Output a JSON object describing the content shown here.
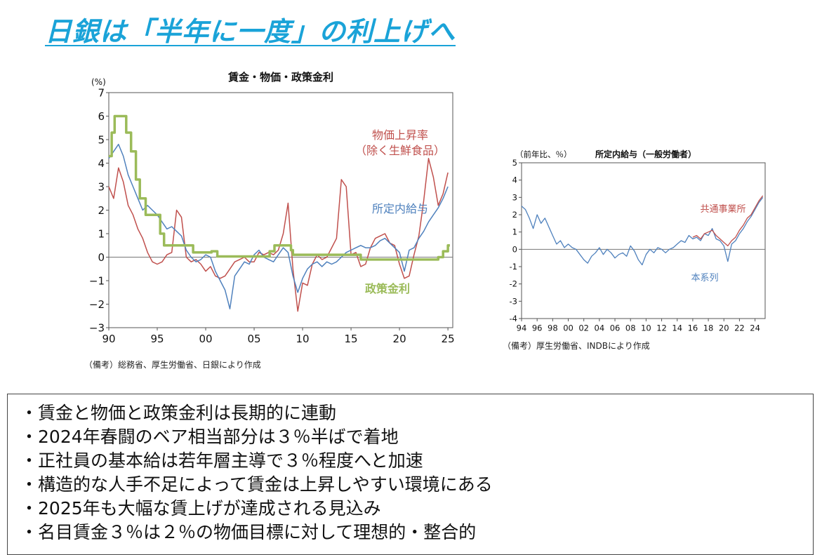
{
  "slide": {
    "title": "日銀は「半年に一度」の利上げへ"
  },
  "notes": {
    "left": "（備考）総務省、厚生労働省、日銀により作成",
    "right": "（備考）厚生労働省、INDBにより作成"
  },
  "bullets": [
    "賃金と物価と政策金利は長期的に連動",
    "2024年春闘のベア相当部分は３％半ばで着地",
    "正社員の基本給は若年層主導で３％程度へと加速",
    "構造的な人手不足によって賃金は上昇しやすい環境にある",
    "2025年も大幅な賃上げが達成される見込み",
    "名目賃金３％は２％の物価目標に対して理想的・整合的"
  ],
  "colors": {
    "title": "#1aa3d8",
    "cpi": "#c0504d",
    "wage": "#4f81bd",
    "policy": "#9bbb59"
  },
  "chart_data": [
    {
      "type": "line",
      "title": "賃金・物価・政策金利",
      "unit_label": "(%)",
      "xlim": [
        1990,
        2025.5
      ],
      "ylim": [
        -3,
        7
      ],
      "yticks": [
        "7",
        "6",
        "5",
        "4",
        "3",
        "2",
        "1",
        "0",
        "−1",
        "−2",
        "−3"
      ],
      "xtick_labels": [
        "90",
        "95",
        "00",
        "05",
        "10",
        "15",
        "20",
        "25"
      ],
      "xtick_values": [
        1990,
        1995,
        2000,
        2005,
        2010,
        2015,
        2020,
        2025
      ],
      "series": [
        {
          "name": "物価上昇率\n（除く生鮮食品）",
          "label_lines": [
            "物価上昇率",
            "（除く生鮮食品）"
          ],
          "color": "#c0504d",
          "x": [
            1990.0,
            1990.5,
            1991.0,
            1991.5,
            1992.0,
            1992.5,
            1993.0,
            1993.5,
            1994.0,
            1994.5,
            1995.0,
            1995.5,
            1996.0,
            1996.5,
            1997.0,
            1997.5,
            1998.0,
            1998.5,
            1999.0,
            1999.5,
            2000.0,
            2000.5,
            2001.0,
            2001.5,
            2002.0,
            2002.5,
            2003.0,
            2003.5,
            2004.0,
            2004.5,
            2005.0,
            2005.5,
            2006.0,
            2006.5,
            2007.0,
            2007.5,
            2008.0,
            2008.5,
            2009.0,
            2009.5,
            2010.0,
            2010.5,
            2011.0,
            2011.5,
            2012.0,
            2012.5,
            2013.0,
            2013.5,
            2014.0,
            2014.5,
            2015.0,
            2015.5,
            2016.0,
            2016.5,
            2017.0,
            2017.5,
            2018.0,
            2018.5,
            2019.0,
            2019.5,
            2020.0,
            2020.5,
            2021.0,
            2021.5,
            2022.0,
            2022.5,
            2023.0,
            2023.5,
            2024.0,
            2024.5,
            2025.0
          ],
          "y": [
            3.0,
            2.5,
            3.8,
            3.2,
            2.2,
            1.8,
            1.2,
            0.8,
            0.2,
            -0.2,
            -0.3,
            -0.2,
            0.1,
            0.2,
            2.0,
            1.7,
            0.0,
            -0.2,
            -0.1,
            -0.3,
            -0.6,
            -0.4,
            -0.8,
            -0.9,
            -0.8,
            -0.5,
            -0.2,
            -0.1,
            0.0,
            -0.2,
            -0.2,
            0.2,
            0.1,
            0.2,
            0.1,
            0.3,
            1.0,
            2.3,
            -0.5,
            -2.3,
            -1.1,
            -1.2,
            -0.3,
            0.1,
            -0.1,
            0.0,
            0.4,
            0.8,
            3.3,
            3.0,
            0.1,
            0.2,
            -0.4,
            -0.3,
            0.4,
            0.8,
            0.9,
            1.0,
            0.6,
            0.5,
            -0.3,
            -0.9,
            -0.8,
            0.1,
            0.9,
            2.4,
            4.2,
            3.4,
            2.2,
            2.7,
            3.6
          ]
        },
        {
          "name": "所定内給与",
          "color": "#4f81bd",
          "x": [
            1990.0,
            1990.5,
            1991.0,
            1991.5,
            1992.0,
            1992.5,
            1993.0,
            1993.5,
            1994.0,
            1994.5,
            1995.0,
            1995.5,
            1996.0,
            1996.5,
            1997.0,
            1997.5,
            1998.0,
            1998.5,
            1999.0,
            1999.5,
            2000.0,
            2000.5,
            2001.0,
            2001.5,
            2002.0,
            2002.5,
            2003.0,
            2003.5,
            2004.0,
            2004.5,
            2005.0,
            2005.5,
            2006.0,
            2006.5,
            2007.0,
            2007.5,
            2008.0,
            2008.5,
            2009.0,
            2009.5,
            2010.0,
            2010.5,
            2011.0,
            2011.5,
            2012.0,
            2012.5,
            2013.0,
            2013.5,
            2014.0,
            2014.5,
            2015.0,
            2015.5,
            2016.0,
            2016.5,
            2017.0,
            2017.5,
            2018.0,
            2018.5,
            2019.0,
            2019.5,
            2020.0,
            2020.5,
            2021.0,
            2021.5,
            2022.0,
            2022.5,
            2023.0,
            2023.5,
            2024.0,
            2024.5,
            2025.0
          ],
          "y": [
            4.2,
            4.5,
            4.8,
            4.3,
            3.5,
            3.0,
            2.5,
            2.0,
            2.2,
            2.0,
            1.8,
            1.5,
            1.2,
            1.3,
            1.1,
            0.9,
            0.3,
            0.0,
            -0.2,
            -0.1,
            0.1,
            0.0,
            -0.6,
            -1.0,
            -1.4,
            -2.2,
            -0.8,
            -0.5,
            -0.2,
            -0.3,
            0.1,
            0.3,
            0.0,
            -0.1,
            -0.2,
            0.1,
            0.4,
            0.2,
            -0.8,
            -1.5,
            -0.9,
            -0.5,
            -0.3,
            -0.2,
            -0.4,
            -0.2,
            -0.3,
            -0.2,
            0.0,
            0.2,
            0.3,
            0.4,
            0.5,
            0.4,
            0.4,
            0.5,
            0.7,
            0.8,
            0.6,
            0.4,
            0.2,
            -0.6,
            0.3,
            0.4,
            0.8,
            1.1,
            1.5,
            1.8,
            2.1,
            2.5,
            3.0
          ]
        },
        {
          "name": "政策金利",
          "color": "#9bbb59",
          "x": [
            1990.0,
            1990.3,
            1990.6,
            1991.5,
            1991.8,
            1992.3,
            1992.8,
            1993.2,
            1993.8,
            1995.3,
            1995.7,
            1998.7,
            2000.6,
            2001.2,
            2006.6,
            2007.1,
            2008.8,
            2009.0,
            2015.5,
            2016.0,
            2024.0,
            2024.5,
            2025.0,
            2025.2
          ],
          "y": [
            4.3,
            5.3,
            6.0,
            6.0,
            5.3,
            4.5,
            3.3,
            2.5,
            1.8,
            1.0,
            0.5,
            0.2,
            0.25,
            0.03,
            0.25,
            0.5,
            0.3,
            0.1,
            0.1,
            -0.1,
            0.0,
            0.25,
            0.5,
            0.5
          ]
        }
      ]
    },
    {
      "type": "line",
      "title": "所定内給与（一般労働者）",
      "unit_label": "（前年比、％）",
      "xlim": [
        1994,
        2025.3
      ],
      "ylim": [
        -4,
        5
      ],
      "yticks": [
        "5",
        "4",
        "3",
        "2",
        "1",
        "0",
        "-1",
        "-2",
        "-3",
        "-4"
      ],
      "xtick_labels": [
        "94",
        "96",
        "98",
        "00",
        "02",
        "04",
        "06",
        "08",
        "10",
        "12",
        "14",
        "16",
        "18",
        "20",
        "22",
        "24"
      ],
      "xtick_values": [
        1994,
        1996,
        1998,
        2000,
        2002,
        2004,
        2006,
        2008,
        2010,
        2012,
        2014,
        2016,
        2018,
        2020,
        2022,
        2024
      ],
      "series": [
        {
          "name": "本系列",
          "color": "#4f81bd",
          "x": [
            1994.0,
            1994.5,
            1995.0,
            1995.5,
            1996.0,
            1996.5,
            1997.0,
            1997.5,
            1998.0,
            1998.5,
            1999.0,
            1999.5,
            2000.0,
            2000.5,
            2001.0,
            2001.5,
            2002.0,
            2002.5,
            2003.0,
            2003.5,
            2004.0,
            2004.5,
            2005.0,
            2005.5,
            2006.0,
            2006.5,
            2007.0,
            2007.5,
            2008.0,
            2008.5,
            2009.0,
            2009.5,
            2010.0,
            2010.5,
            2011.0,
            2011.5,
            2012.0,
            2012.5,
            2013.0,
            2013.5,
            2014.0,
            2014.5,
            2015.0,
            2015.5,
            2016.0,
            2016.5,
            2017.0,
            2017.5,
            2018.0,
            2018.5,
            2019.0,
            2019.5,
            2020.0,
            2020.5,
            2021.0,
            2021.5,
            2022.0,
            2022.5,
            2023.0,
            2023.5,
            2024.0,
            2024.5,
            2025.0
          ],
          "y": [
            2.5,
            2.3,
            1.8,
            1.2,
            2.0,
            1.5,
            1.8,
            1.3,
            0.8,
            0.3,
            0.5,
            0.1,
            0.3,
            0.1,
            0.0,
            -0.3,
            -0.6,
            -0.8,
            -0.4,
            -0.2,
            0.1,
            -0.3,
            0.0,
            -0.2,
            -0.5,
            -0.3,
            -0.2,
            -0.4,
            0.2,
            -0.1,
            -0.6,
            -0.9,
            -0.3,
            0.0,
            -0.2,
            0.1,
            0.0,
            -0.2,
            0.0,
            0.1,
            0.3,
            0.5,
            0.4,
            0.8,
            0.6,
            0.7,
            0.5,
            0.9,
            0.8,
            1.2,
            0.6,
            0.5,
            0.2,
            -0.7,
            0.3,
            0.5,
            0.9,
            1.2,
            1.6,
            1.9,
            2.3,
            2.7,
            3.0
          ]
        },
        {
          "name": "共通事業所",
          "color": "#c0504d",
          "x": [
            2016.0,
            2016.5,
            2017.0,
            2017.5,
            2018.0,
            2018.5,
            2019.0,
            2019.5,
            2020.0,
            2020.5,
            2021.0,
            2021.5,
            2022.0,
            2022.5,
            2023.0,
            2023.5,
            2024.0,
            2024.5,
            2025.0
          ],
          "y": [
            0.7,
            0.8,
            0.6,
            0.9,
            1.0,
            1.1,
            0.8,
            0.6,
            0.4,
            0.2,
            0.5,
            0.7,
            1.1,
            1.4,
            1.8,
            2.0,
            2.4,
            2.8,
            3.1
          ]
        }
      ]
    }
  ]
}
